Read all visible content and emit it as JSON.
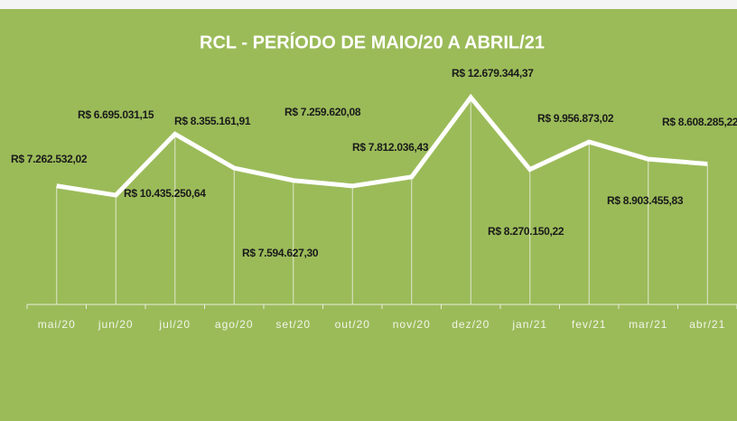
{
  "chart_data": {
    "type": "line",
    "title": "RCL - PERÍODO DE  MAIO/20 A ABRIL/21",
    "categories": [
      "mai/20",
      "jun/20",
      "jul/20",
      "ago/20",
      "set/20",
      "out/20",
      "nov/20",
      "dez/20",
      "jan/21",
      "fev/21",
      "mar/21",
      "abr/21"
    ],
    "series": [
      {
        "color": "#ffffff",
        "values": [
          7262532.02,
          6695031.15,
          10435250.64,
          8355161.91,
          7594627.3,
          7259620.08,
          7812036.43,
          12679344.37,
          8270150.22,
          9956873.02,
          8903455.83,
          8608285.22
        ],
        "value_labels": [
          "R$ 7.262.532,02",
          "R$ 6.695.031,15",
          "R$ 10.435.250,64",
          "R$ 8.355.161,91",
          "R$ 7.594.627,30",
          "R$ 7.259.620,08",
          "R$ 7.812.036,43",
          "R$ 12.679.344,37",
          "R$ 8.270.150,22",
          "R$ 9.956.873,02",
          "R$ 8.903.455,83",
          "R$ 8.608.285,22"
        ]
      }
    ],
    "ylim": [
      0,
      14000000
    ]
  }
}
